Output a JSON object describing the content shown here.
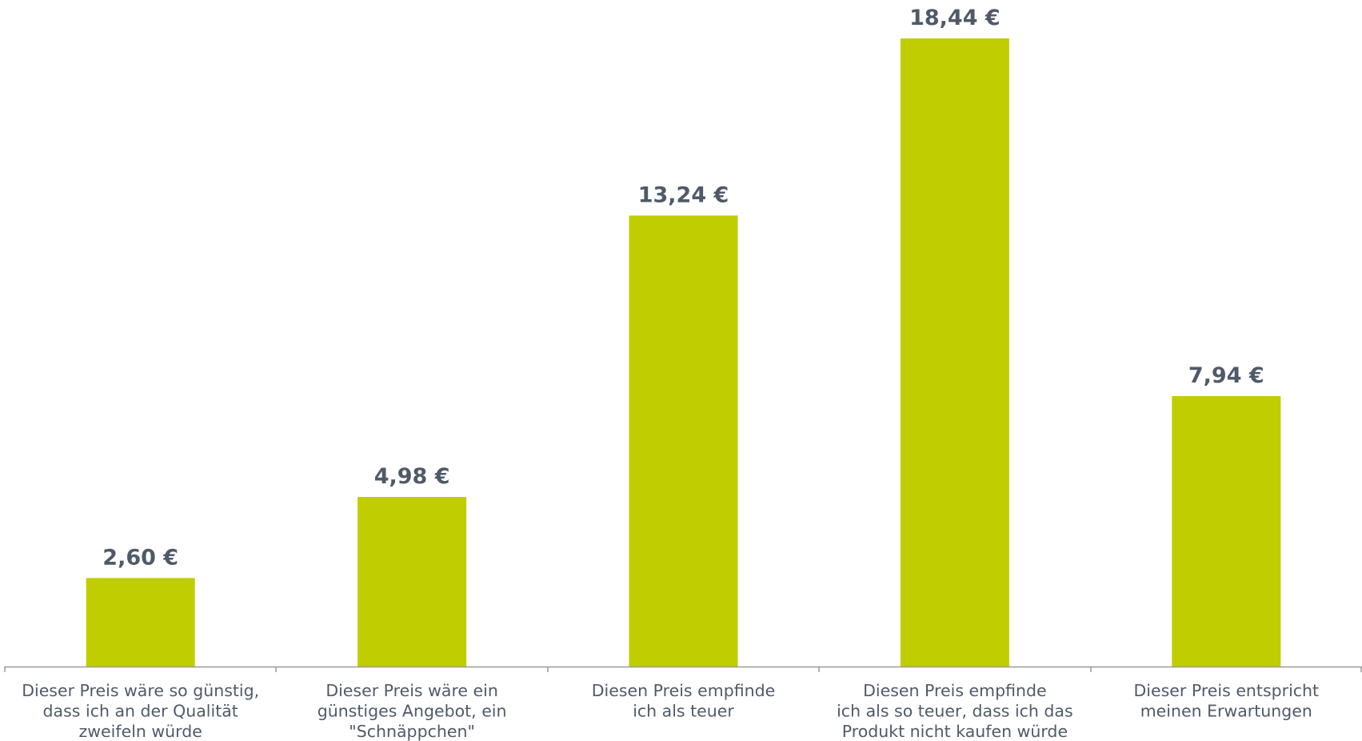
{
  "chart_data": {
    "type": "bar",
    "categories": [
      [
        "Dieser Preis wäre so günstig,",
        "dass ich an der Qualität",
        "zweifeln würde"
      ],
      [
        "Dieser Preis wäre ein",
        "günstiges Angebot, ein",
        "\"Schnäppchen\""
      ],
      [
        "Diesen Preis empfinde",
        "ich als teuer"
      ],
      [
        "Diesen Preis empfinde",
        "ich als so teuer, dass ich das",
        "Produkt nicht kaufen würde"
      ],
      [
        "Dieser Preis entspricht",
        "meinen Erwartungen"
      ]
    ],
    "values": [
      2.6,
      4.98,
      13.24,
      18.44,
      7.94
    ],
    "data_labels": [
      "2,60 €",
      "4,98 €",
      "13,24 €",
      "18,44 €",
      "7,94 €"
    ],
    "title": "",
    "xlabel": "",
    "ylabel": "",
    "ylim": [
      0,
      20
    ],
    "grid": false,
    "legend": "none",
    "colors": {
      "bar": "#c0cd00",
      "label": "#4f5a69",
      "axis": "#9a9a9a"
    }
  }
}
